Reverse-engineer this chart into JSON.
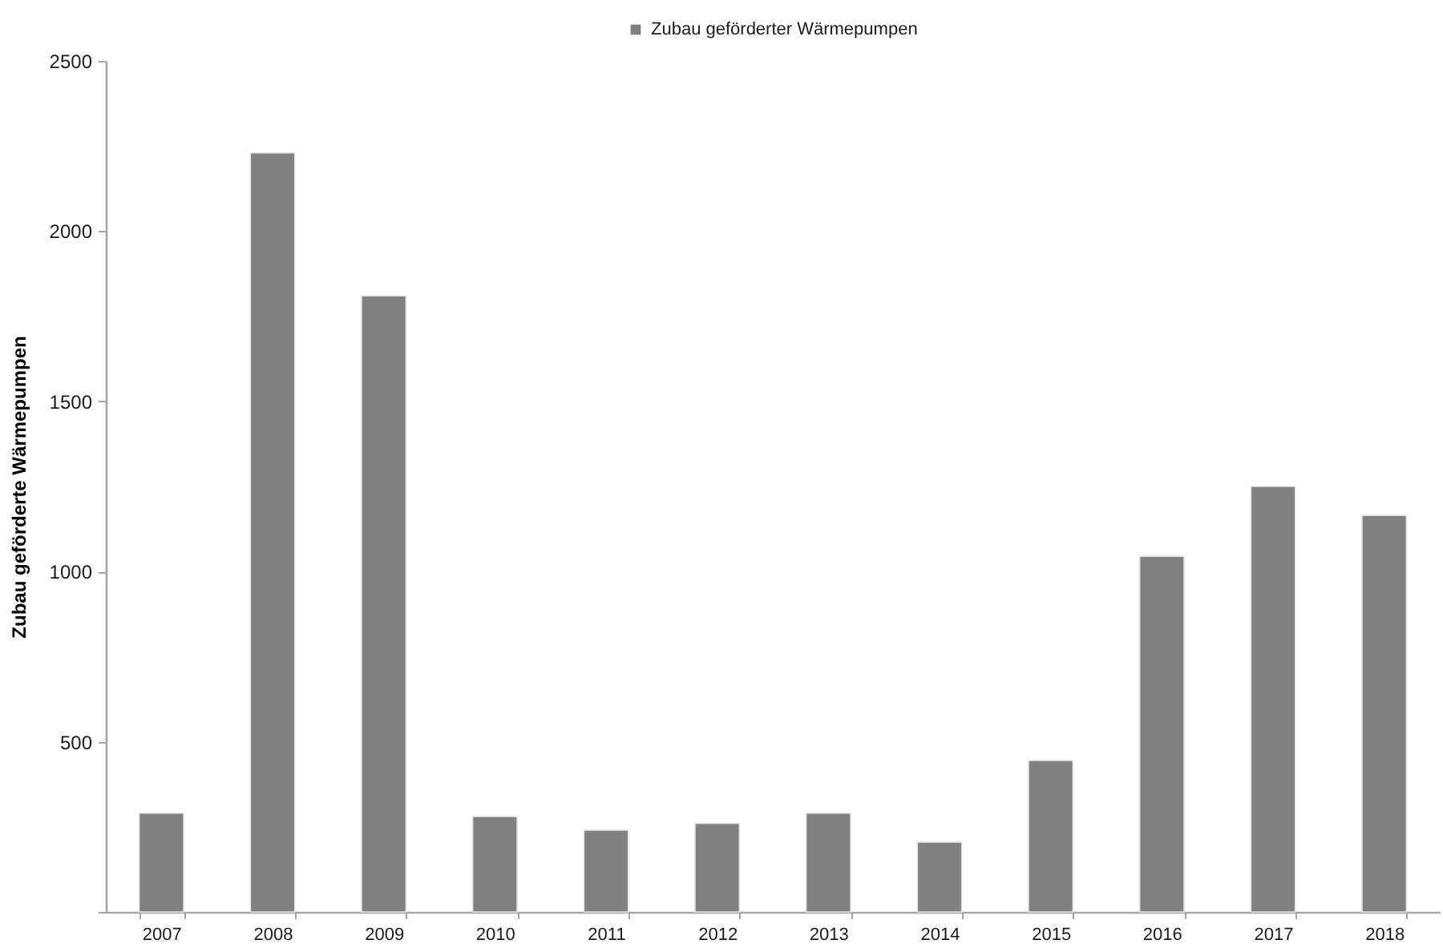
{
  "chart_data": {
    "type": "bar",
    "categories": [
      "2007",
      "2008",
      "2009",
      "2010",
      "2011",
      "2012",
      "2013",
      "2014",
      "2015",
      "2016",
      "2017",
      "2018"
    ],
    "series": [
      {
        "name": "Zubau geförderter Wärmepumpen",
        "color": "#808080",
        "values": [
          290,
          2230,
          1810,
          280,
          240,
          260,
          290,
          205,
          445,
          1045,
          1250,
          1165
        ]
      }
    ],
    "ylabel": "Zubau geförderte Wärmepumpen",
    "ylim": [
      0,
      2500
    ],
    "yticks": [
      {
        "value": 0,
        "label": null
      },
      500,
      1000,
      1500,
      2000,
      2500
    ],
    "grid": false,
    "legend": "top"
  }
}
